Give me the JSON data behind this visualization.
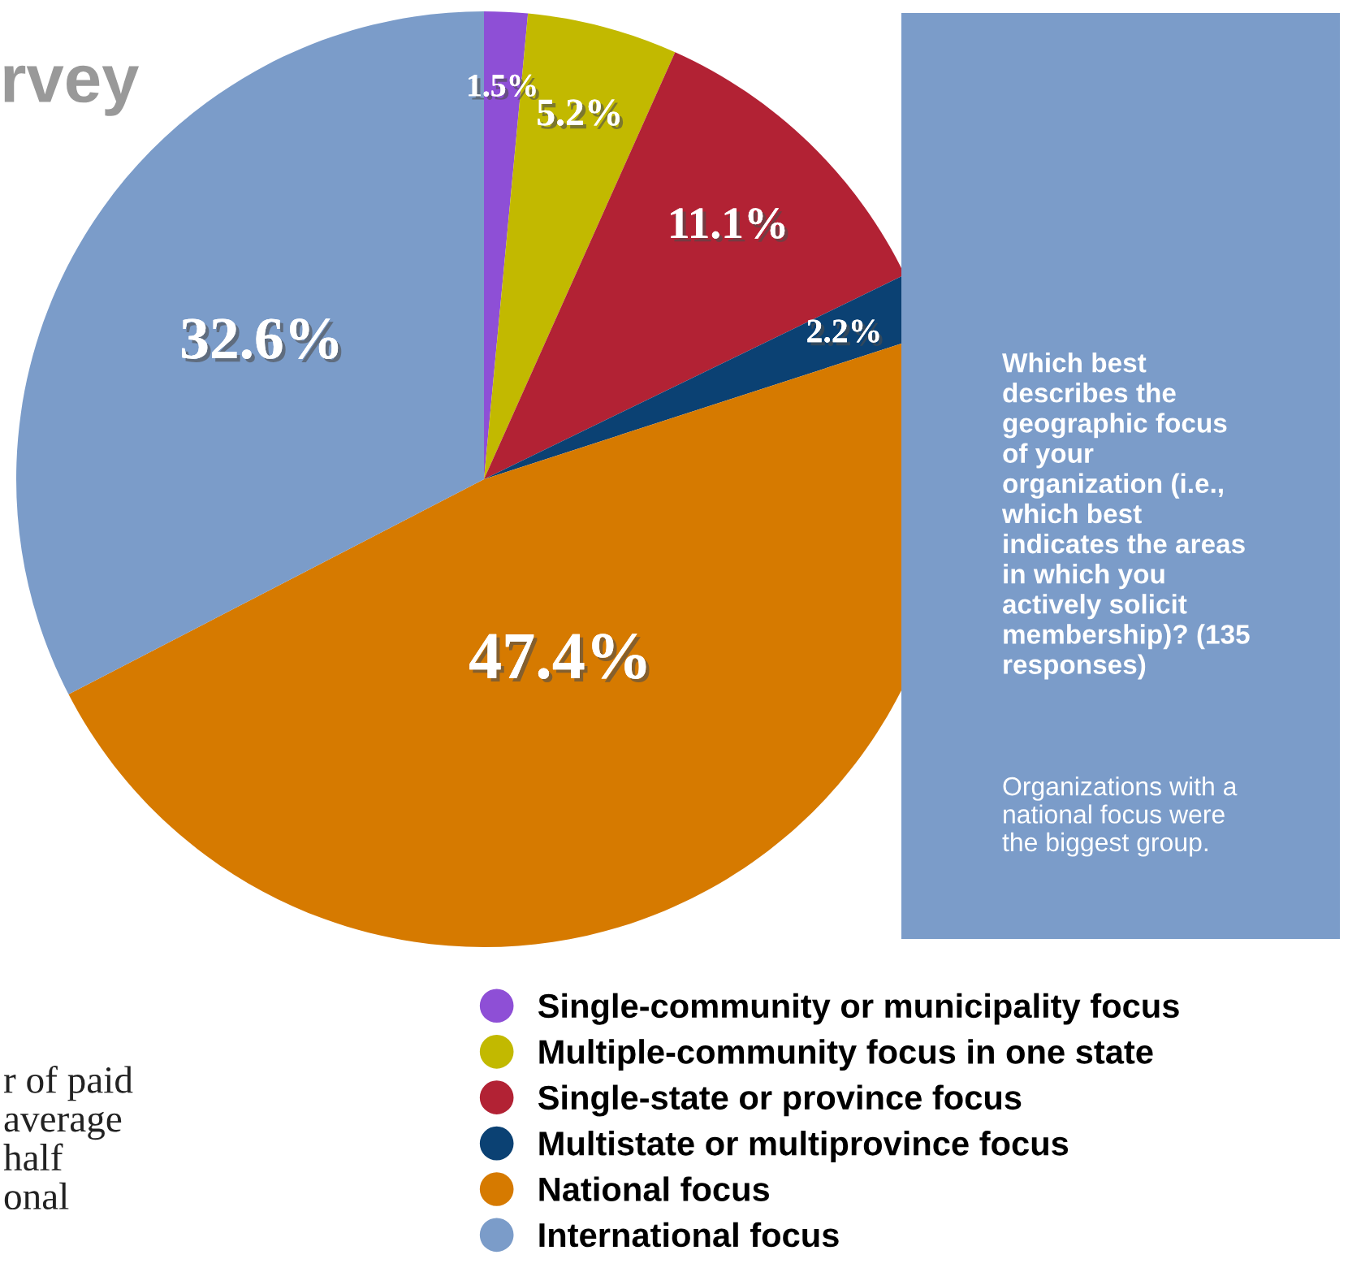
{
  "chart_data": {
    "type": "pie",
    "title": "rvey",
    "categories": [
      "Single-community or municipality focus",
      "Multiple-community focus in one state",
      "Single-state or province focus",
      "Multistate or multiprovince focus",
      "National focus",
      "International focus"
    ],
    "values": [
      1.5,
      5.2,
      11.1,
      2.2,
      47.4,
      32.6
    ],
    "value_labels": [
      "1.5%",
      "5.2%",
      "11.1%",
      "2.2%",
      "47.4%",
      "32.6%"
    ],
    "colors": [
      "#8e4fd6",
      "#c2b900",
      "#b22234",
      "#0b4173",
      "#d67a00",
      "#7b9cc9"
    ],
    "legend": "bottom",
    "annotations": [
      "Which best\ndescribes the\ngeographic focus\nof your\norganization (i.e.,\nwhich best\nindicates the areas\nin which you\nactively solicit\nmembership)? (135\nresponses)",
      "Organizations with a\nnational focus were\nthe biggest group.",
      "r of paid\naverage\nhalf\nonal"
    ]
  }
}
